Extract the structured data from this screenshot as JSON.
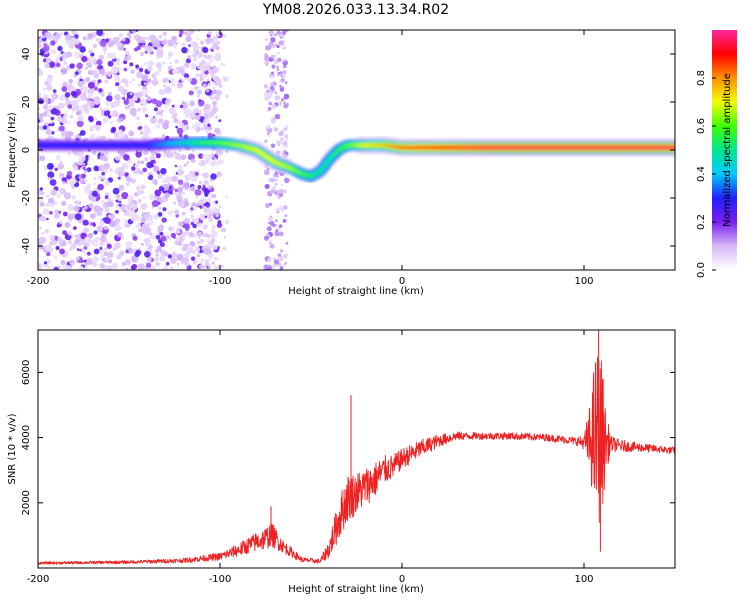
{
  "chart_data": [
    {
      "type": "heatmap",
      "title": "YM08.2026.033.13.34.R02",
      "xlabel": "Height of straight line (km)",
      "ylabel": "Frequency (Hz)",
      "xlim": [
        -200,
        150
      ],
      "ylim": [
        -50,
        50
      ],
      "xticks": [
        -200,
        -100,
        0,
        100
      ],
      "yticks": [
        -40,
        -20,
        0,
        20,
        40
      ],
      "colorbar": {
        "label": "Normalized spectral amplitude",
        "range": [
          0,
          1
        ],
        "ticks": [
          "0.0",
          "0.2",
          "0.4",
          "0.6",
          "0.8"
        ],
        "colors": [
          "#ffffff",
          "#d6b8f7",
          "#7a1ff0",
          "#2020ff",
          "#00c8ff",
          "#00e890",
          "#40ff00",
          "#f0ff00",
          "#ff9000",
          "#ff0000",
          "#ff2aa0"
        ]
      },
      "ridge": {
        "x": [
          -200,
          -160,
          -140,
          -120,
          -110,
          -100,
          -90,
          -80,
          -70,
          -60,
          -55,
          -50,
          -45,
          -40,
          -35,
          -30,
          -20,
          -10,
          0,
          20,
          50,
          100,
          150
        ],
        "y": [
          2,
          2,
          2,
          3,
          3,
          3,
          2,
          0,
          -5,
          -8,
          -10,
          -11,
          -9,
          -4,
          0,
          2,
          2,
          2,
          1,
          1,
          1,
          1,
          1
        ],
        "amplitude": [
          0.3,
          0.3,
          0.3,
          0.45,
          0.55,
          0.6,
          0.65,
          0.7,
          0.7,
          0.65,
          0.6,
          0.55,
          0.5,
          0.5,
          0.55,
          0.6,
          0.7,
          0.75,
          0.85,
          0.9,
          0.95,
          0.95,
          0.95
        ]
      }
    },
    {
      "type": "line",
      "xlabel": "Height of straight line (km)",
      "ylabel": "SNR (10 * v/v)",
      "xlim": [
        -200,
        150
      ],
      "ylim": [
        0,
        7300
      ],
      "xticks": [
        -200,
        -100,
        0,
        100
      ],
      "yticks": [
        2000,
        4000,
        6000
      ],
      "color": "#ee2222",
      "series": [
        {
          "name": "SNR",
          "x": [
            -200,
            -150,
            -120,
            -100,
            -90,
            -80,
            -75,
            -72,
            -65,
            -55,
            -45,
            -40,
            -35,
            -30,
            -25,
            -20,
            -15,
            -10,
            -5,
            0,
            10,
            20,
            30,
            40,
            60,
            80,
            95,
            100,
            104,
            106,
            108,
            110,
            112,
            115,
            120,
            130,
            140,
            150
          ],
          "y": [
            150,
            180,
            230,
            350,
            550,
            800,
            900,
            1050,
            650,
            250,
            200,
            600,
            1450,
            2150,
            2300,
            2500,
            2700,
            3000,
            3100,
            3350,
            3650,
            3900,
            4050,
            4050,
            4050,
            4000,
            3900,
            3850,
            3900,
            4000,
            4100,
            4000,
            3850,
            3800,
            3750,
            3700,
            3650,
            3600
          ],
          "noise": [
            40,
            50,
            70,
            120,
            200,
            300,
            350,
            400,
            200,
            80,
            70,
            300,
            650,
            750,
            650,
            600,
            550,
            450,
            380,
            320,
            280,
            200,
            130,
            110,
            110,
            110,
            120,
            220,
            1400,
            2600,
            2800,
            2400,
            900,
            250,
            180,
            140,
            120,
            110
          ]
        }
      ],
      "annotations": [
        {
          "x": -72,
          "y": 1900
        },
        {
          "x": -28,
          "y": 5300
        },
        {
          "x": 108,
          "y": 7300
        },
        {
          "x": 109,
          "y": 500
        }
      ]
    }
  ]
}
